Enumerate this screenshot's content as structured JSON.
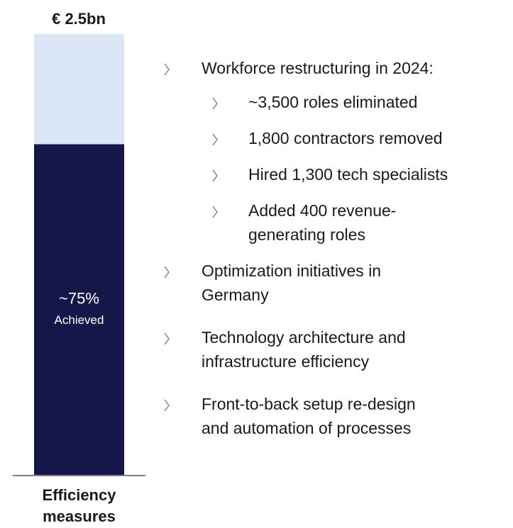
{
  "chart_data": {
    "type": "stacked_bar",
    "title": "€ 2.5bn",
    "categories": [
      "Efficiency measures"
    ],
    "series": [
      {
        "name": "Achieved",
        "color": "#15174a",
        "values": [
          75
        ],
        "value_labels": [
          "~75%"
        ]
      }
    ],
    "remainder_color": "#dbe7f6",
    "ylim": [
      0,
      100
    ]
  },
  "bullets": [
    {
      "lines": [
        "Workforce restructuring in 2024:"
      ],
      "children": [
        {
          "lines": [
            "~3,500 roles eliminated"
          ]
        },
        {
          "lines": [
            "1,800 contractors removed"
          ]
        },
        {
          "lines": [
            "Hired 1,300 tech specialists"
          ]
        },
        {
          "lines": [
            "Added 400 revenue-",
            "generating roles"
          ]
        }
      ]
    },
    {
      "lines": [
        "Optimization initiatives in",
        "Germany"
      ]
    },
    {
      "lines": [
        "Technology architecture and",
        "infrastructure efficiency"
      ]
    },
    {
      "lines": [
        "Front-to-back setup re-design",
        "and automation of processes"
      ]
    }
  ]
}
